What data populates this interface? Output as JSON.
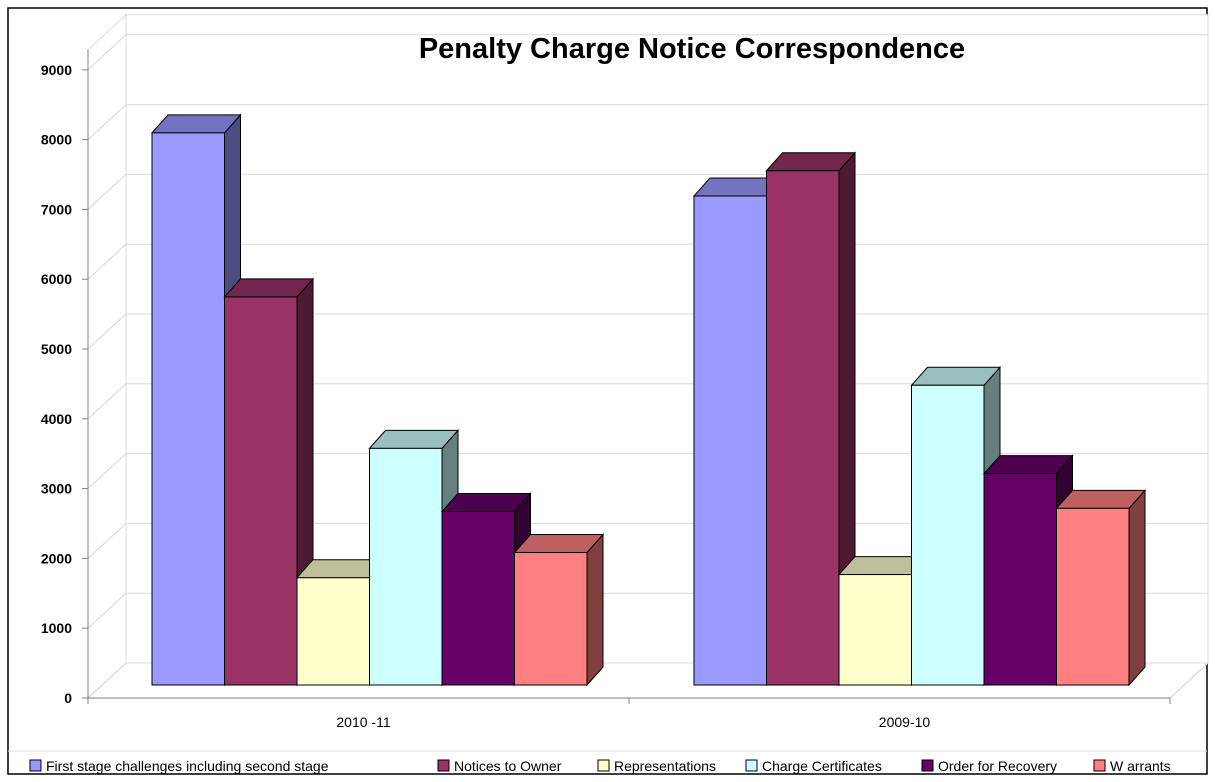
{
  "chart_data": {
    "type": "bar",
    "title": "Penalty Charge Notice Correspondence",
    "categories": [
      "2010 -11",
      "2009-10"
    ],
    "yticks": [
      0,
      1000,
      2000,
      3000,
      4000,
      5000,
      6000,
      7000,
      8000,
      9000
    ],
    "ylim": [
      0,
      9000
    ],
    "grid": true,
    "legend_position": "bottom",
    "style": "3d-clustered-column",
    "series": [
      {
        "name": "First stage challenges including second stage",
        "values": [
          8750,
          7750
        ],
        "color": "#9999FF"
      },
      {
        "name": "Notices to Owner",
        "values": [
          6150,
          8150
        ],
        "color": "#993366"
      },
      {
        "name": "Representations",
        "values": [
          1700,
          1750
        ],
        "color": "#FFFFCC"
      },
      {
        "name": "Charge Certificates",
        "values": [
          3750,
          4750
        ],
        "color": "#CCFFFF"
      },
      {
        "name": "Order for Recovery",
        "values": [
          2750,
          3350
        ],
        "color": "#660066"
      },
      {
        "name": "W arrants",
        "values": [
          2100,
          2800
        ],
        "color": "#FF8080"
      }
    ]
  }
}
